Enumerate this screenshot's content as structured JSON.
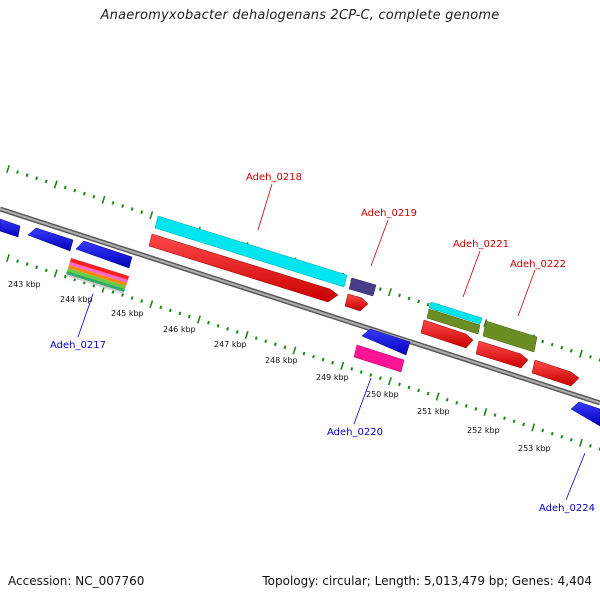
{
  "title": "Anaeromyxobacter dehalogenans 2CP-C, complete genome",
  "footer": {
    "accession": "Accession: NC_007760",
    "summary": "Topology: circular; Length: 5,013,479 bp; Genes: 4,404"
  },
  "colors": {
    "backbone": "#888888",
    "tick_green": "#1a8a1a",
    "forward_red": "#ff0000",
    "reverse_blue": "#0000ff",
    "label_red": "#cc0000",
    "label_blue": "#0000cc",
    "cyan": "#00e5ee",
    "olive": "#6b8e23",
    "slate": "#483d8b",
    "magenta": "#ff1493"
  },
  "scale_labels": [
    "243 kbp",
    "244 kbp",
    "245 kbp",
    "246 kbp",
    "247 kbp",
    "248 kbp",
    "249 kbp",
    "250 kbp",
    "251 kbp",
    "252 kbp",
    "253 kbp"
  ],
  "gene_labels": {
    "Adeh_0217": "Adeh_0217",
    "Adeh_0218": "Adeh_0218",
    "Adeh_0219": "Adeh_0219",
    "Adeh_0220": "Adeh_0220",
    "Adeh_0221": "Adeh_0221",
    "Adeh_0222": "Adeh_0222",
    "Adeh_0224": "Adeh_0224"
  }
}
